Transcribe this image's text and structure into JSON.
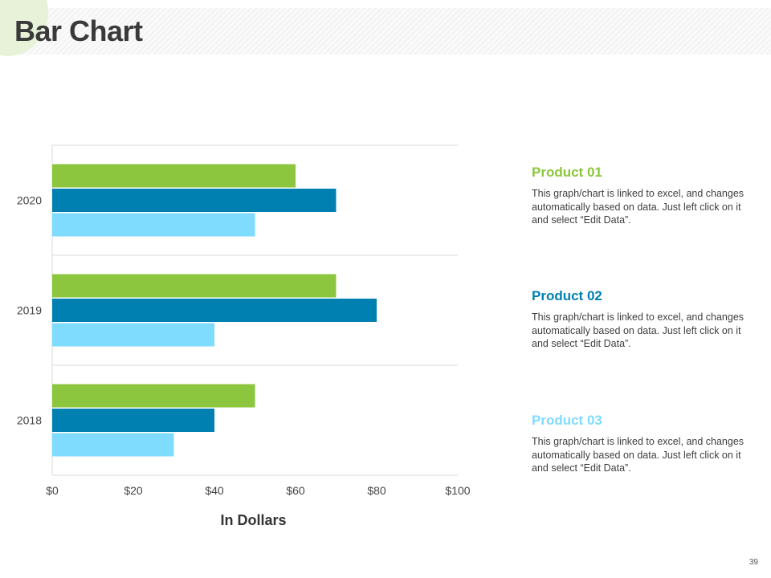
{
  "page": {
    "title": "Bar Chart",
    "page_number": "39"
  },
  "colors": {
    "product01": "#8cc63e",
    "product02": "#0080b0",
    "product03": "#7fdcff"
  },
  "chart_data": {
    "type": "bar",
    "orientation": "horizontal",
    "categories": [
      "2018",
      "2019",
      "2020"
    ],
    "series": [
      {
        "name": "Product 01",
        "values": [
          50,
          70,
          60
        ]
      },
      {
        "name": "Product 02",
        "values": [
          40,
          80,
          70
        ]
      },
      {
        "name": "Product 03",
        "values": [
          30,
          40,
          50
        ]
      }
    ],
    "xlim": [
      0,
      100
    ],
    "x_ticks": [
      "$0",
      "$20",
      "$40",
      "$60",
      "$80",
      "$100"
    ],
    "xlabel": "In Dollars",
    "ylabel": "",
    "grid": true
  },
  "products": [
    {
      "title": "Product 01",
      "text": "This graph/chart is linked to excel,  and changes automatically based on data. Just left click on it and select “Edit Data”."
    },
    {
      "title": "Product 02",
      "text": "This graph/chart is linked to excel,  and changes automatically based on data. Just left click on it and select “Edit Data”."
    },
    {
      "title": "Product 03",
      "text": "This graph/chart is linked to excel,  and changes automatically based on data. Just left click on it and select “Edit Data”."
    }
  ]
}
